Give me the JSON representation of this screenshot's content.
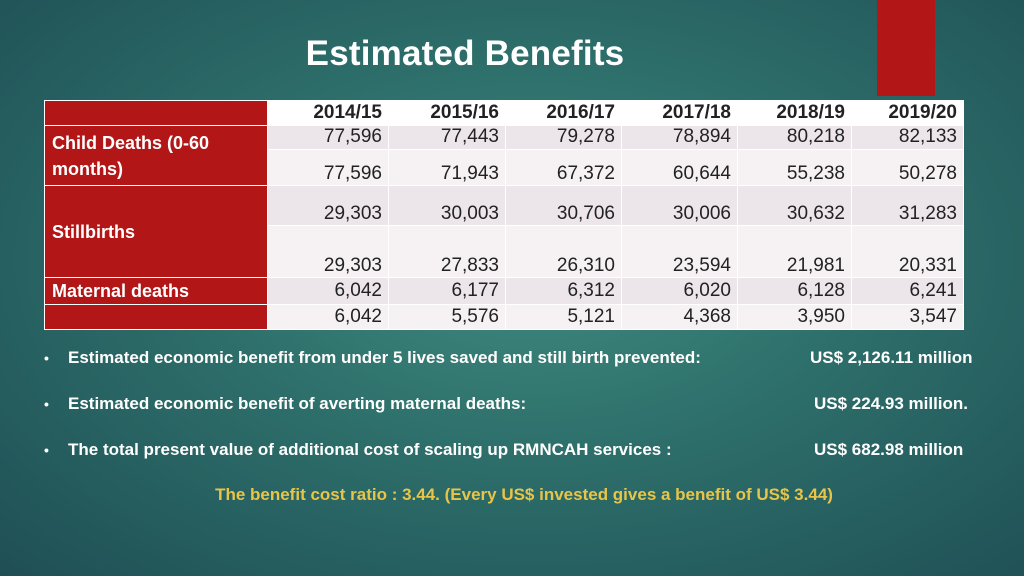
{
  "title": "Estimated Benefits",
  "table": {
    "years": [
      "2014/15",
      "2015/16",
      "2016/17",
      "2017/18",
      "2018/19",
      "2019/20"
    ],
    "rows": [
      {
        "label": "Child Deaths (0-60 months)",
        "upper": [
          "77,596",
          "77,443",
          "79,278",
          "78,894",
          "80,218",
          "82,133"
        ],
        "lower": [
          "77,596",
          "71,943",
          "67,372",
          "60,644",
          "55,238",
          "50,278"
        ]
      },
      {
        "label": "Stillbirths",
        "upper": [
          "29,303",
          "30,003",
          "30,706",
          "30,006",
          "30,632",
          "31,283"
        ],
        "lower": [
          "29,303",
          "27,833",
          "26,310",
          "23,594",
          "21,981",
          "20,331"
        ]
      },
      {
        "label": "Maternal deaths",
        "upper": [
          "6,042",
          "6,177",
          "6,312",
          "6,020",
          "6,128",
          "6,241"
        ],
        "lower": [
          "6,042",
          "5,576",
          "5,121",
          "4,368",
          "3,950",
          "3,547"
        ]
      }
    ]
  },
  "bullets": [
    {
      "bullet": "•",
      "text": "Estimated economic benefit from under 5 lives saved  and still birth prevented:",
      "value": "US$ 2,126.11 million"
    },
    {
      "bullet": "•",
      "text": "Estimated economic benefit of averting maternal deaths:",
      "value": "US$ 224.93 million."
    },
    {
      "bullet": "•",
      "text": "The total present value of additional cost of scaling up RMNCAH services :",
      "value": "US$ 682.98 million"
    }
  ],
  "ratio_text": "The benefit cost ratio : 3.44.  (Every US$ invested gives a benefit of US$ 3.44)",
  "colors": {
    "accent": "#b31616",
    "background": "#2d6e6a",
    "highlight_text": "#e8c548"
  }
}
